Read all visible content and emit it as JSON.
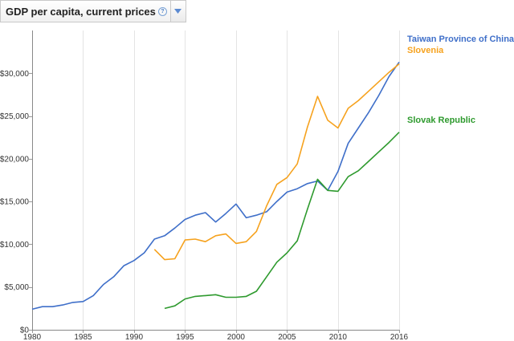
{
  "header": {
    "indicator_label": "GDP per capita, current prices",
    "help_glyph": "?",
    "help_icon": "help-circle-icon",
    "dropdown_icon": "chevron-down-icon"
  },
  "chart_data": {
    "type": "line",
    "title": "",
    "xlabel": "",
    "ylabel": "",
    "xlim": [
      1980,
      2016
    ],
    "ylim": [
      0,
      35000
    ],
    "x_ticks": [
      1980,
      1985,
      1990,
      1995,
      2000,
      2005,
      2010,
      2016
    ],
    "x_tick_labels": [
      "1980",
      "1985",
      "1990",
      "1995",
      "2000",
      "2005",
      "2010",
      "2016"
    ],
    "y_ticks": [
      0,
      5000,
      10000,
      15000,
      20000,
      25000,
      30000
    ],
    "y_tick_labels": [
      "$0",
      "$5,000",
      "$10,000",
      "$15,000",
      "$20,000",
      "$25,000",
      "$30,000"
    ],
    "grid": "vertical",
    "legend": "inline-right",
    "series": [
      {
        "name": "Taiwan Province of China",
        "color": "#3f6fc9",
        "x": [
          1980,
          1981,
          1982,
          1983,
          1984,
          1985,
          1986,
          1987,
          1988,
          1989,
          1990,
          1991,
          1992,
          1993,
          1994,
          1995,
          1996,
          1997,
          1998,
          1999,
          2000,
          2001,
          2002,
          2003,
          2004,
          2005,
          2006,
          2007,
          2008,
          2009,
          2010,
          2011,
          2012,
          2013,
          2014,
          2015,
          2016
        ],
        "y": [
          2400,
          2700,
          2700,
          2900,
          3200,
          3300,
          4000,
          5300,
          6200,
          7500,
          8100,
          9000,
          10600,
          11000,
          11900,
          12900,
          13400,
          13700,
          12600,
          13600,
          14700,
          13100,
          13400,
          13800,
          15000,
          16100,
          16500,
          17100,
          17400,
          16300,
          18500,
          21800,
          23600,
          25400,
          27400,
          29600,
          31300
        ]
      },
      {
        "name": "Slovenia",
        "color": "#f6a21e",
        "x": [
          1992,
          1993,
          1994,
          1995,
          1996,
          1997,
          1998,
          1999,
          2000,
          2001,
          2002,
          2003,
          2004,
          2005,
          2006,
          2007,
          2008,
          2009,
          2010,
          2011,
          2012,
          2013,
          2014,
          2015,
          2016
        ],
        "y": [
          9400,
          8200,
          8300,
          10500,
          10600,
          10300,
          11000,
          11200,
          10100,
          10300,
          11500,
          14500,
          17000,
          17800,
          19400,
          23700,
          27300,
          24500,
          23600,
          25900,
          26800,
          27900,
          29000,
          30100,
          31100
        ]
      },
      {
        "name": "Slovak Republic",
        "color": "#2e9a2e",
        "x": [
          1993,
          1994,
          1995,
          1996,
          1997,
          1998,
          1999,
          2000,
          2001,
          2002,
          2003,
          2004,
          2005,
          2006,
          2007,
          2008,
          2009,
          2010,
          2011,
          2012,
          2013,
          2014,
          2015,
          2016
        ],
        "y": [
          2500,
          2800,
          3600,
          3900,
          4000,
          4100,
          3800,
          3800,
          3900,
          4500,
          6200,
          7900,
          9000,
          10400,
          14100,
          17600,
          16300,
          16200,
          17900,
          18600,
          19700,
          20800,
          21900,
          23100
        ]
      }
    ]
  }
}
